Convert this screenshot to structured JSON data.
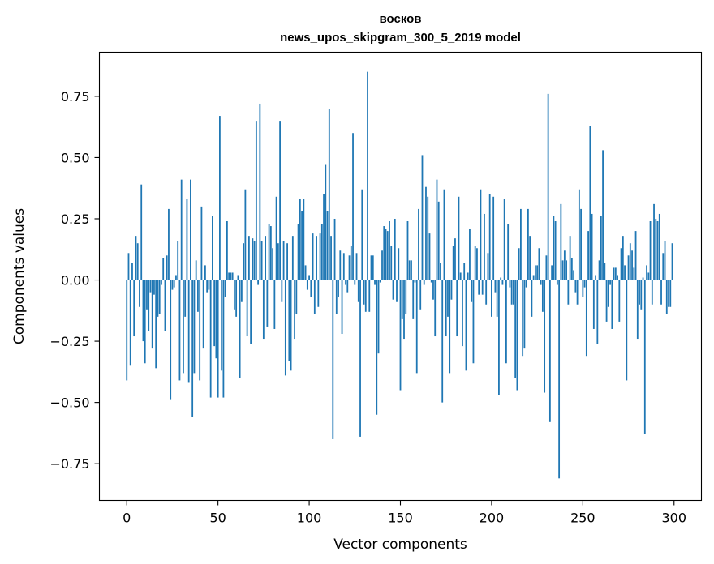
{
  "chart_data": {
    "type": "bar",
    "title_line1": "восков",
    "title_line2": "news_upos_skipgram_300_5_2019 model",
    "xlabel": "Vector components",
    "ylabel": "Components values",
    "xlim": [
      -15,
      315
    ],
    "ylim": [
      -0.9,
      0.93
    ],
    "x_ticks": [
      0,
      50,
      100,
      150,
      200,
      250,
      300
    ],
    "x_tick_labels": [
      "0",
      "50",
      "100",
      "150",
      "200",
      "250",
      "300"
    ],
    "y_ticks": [
      -0.75,
      -0.5,
      -0.25,
      0.0,
      0.25,
      0.5,
      0.75
    ],
    "y_tick_labels": [
      "−0.75",
      "−0.50",
      "−0.25",
      "0.00",
      "0.25",
      "0.50",
      "0.75"
    ],
    "bar_color": "#1f77b4",
    "values": [
      -0.41,
      0.11,
      -0.35,
      0.07,
      -0.23,
      0.18,
      0.15,
      -0.11,
      0.39,
      -0.25,
      -0.34,
      -0.12,
      -0.21,
      -0.05,
      -0.28,
      -0.06,
      -0.36,
      -0.15,
      -0.14,
      -0.02,
      0.09,
      -0.21,
      0.1,
      0.29,
      -0.49,
      -0.04,
      -0.03,
      0.02,
      0.16,
      -0.41,
      0.41,
      -0.38,
      -0.15,
      0.33,
      -0.42,
      0.41,
      -0.56,
      -0.38,
      0.08,
      -0.13,
      -0.41,
      0.3,
      -0.28,
      0.06,
      -0.05,
      -0.04,
      -0.48,
      0.26,
      -0.27,
      -0.32,
      -0.48,
      0.67,
      -0.37,
      -0.48,
      -0.07,
      0.24,
      0.03,
      0.03,
      0.03,
      -0.12,
      -0.15,
      0.02,
      -0.4,
      -0.09,
      0.15,
      0.37,
      -0.23,
      0.18,
      -0.26,
      0.17,
      0.16,
      0.65,
      -0.02,
      0.72,
      0.16,
      -0.24,
      0.18,
      -0.19,
      0.23,
      0.22,
      0.13,
      -0.2,
      0.34,
      0.15,
      0.65,
      -0.09,
      0.16,
      -0.39,
      0.15,
      -0.33,
      -0.37,
      0.18,
      -0.24,
      -0.14,
      0.23,
      0.33,
      0.28,
      0.33,
      0.06,
      -0.04,
      0.02,
      -0.07,
      0.19,
      -0.14,
      0.18,
      -0.11,
      0.19,
      0.23,
      0.35,
      0.47,
      0.28,
      0.7,
      0.18,
      -0.65,
      0.25,
      -0.14,
      -0.07,
      0.12,
      -0.22,
      0.11,
      -0.02,
      -0.05,
      0.1,
      0.14,
      0.6,
      -0.02,
      0.11,
      -0.09,
      -0.64,
      0.37,
      -0.1,
      -0.13,
      0.85,
      -0.13,
      0.1,
      0.1,
      -0.02,
      -0.55,
      -0.3,
      -0.01,
      0.12,
      0.22,
      0.21,
      0.2,
      0.24,
      0.14,
      -0.08,
      0.25,
      -0.09,
      0.13,
      -0.45,
      -0.16,
      -0.24,
      -0.14,
      0.24,
      0.08,
      0.08,
      -0.16,
      -0.01,
      -0.38,
      0.29,
      -0.12,
      0.51,
      -0.02,
      0.38,
      0.34,
      0.19,
      -0.01,
      -0.08,
      -0.23,
      0.41,
      0.32,
      0.07,
      -0.5,
      0.37,
      -0.23,
      -0.15,
      -0.38,
      -0.08,
      0.14,
      0.17,
      -0.23,
      0.34,
      0.03,
      -0.27,
      0.07,
      -0.37,
      0.03,
      0.21,
      -0.09,
      -0.34,
      0.14,
      0.13,
      -0.06,
      0.37,
      -0.06,
      0.27,
      -0.1,
      0.11,
      0.35,
      -0.15,
      0.34,
      -0.05,
      -0.15,
      -0.47,
      0.01,
      -0.02,
      0.33,
      -0.34,
      0.23,
      -0.03,
      -0.1,
      -0.1,
      -0.4,
      -0.45,
      0.13,
      0.29,
      -0.31,
      -0.28,
      -0.03,
      0.29,
      0.18,
      -0.15,
      0.02,
      0.06,
      0.06,
      0.13,
      -0.02,
      -0.13,
      -0.46,
      0.1,
      0.76,
      -0.58,
      0.06,
      0.26,
      0.24,
      -0.02,
      -0.81,
      0.31,
      0.08,
      0.12,
      0.08,
      -0.1,
      0.18,
      0.09,
      0.04,
      -0.05,
      -0.1,
      0.37,
      0.29,
      -0.07,
      -0.03,
      -0.31,
      0.2,
      0.63,
      0.27,
      -0.2,
      0.02,
      -0.26,
      0.08,
      0.26,
      0.53,
      0.07,
      -0.17,
      -0.11,
      -0.02,
      -0.2,
      0.05,
      0.05,
      0.02,
      -0.17,
      0.13,
      0.18,
      0.06,
      -0.41,
      0.1,
      0.15,
      0.12,
      0.05,
      0.2,
      -0.24,
      -0.1,
      -0.12,
      0.01,
      -0.63,
      0.06,
      0.03,
      0.24,
      -0.1,
      0.31,
      0.25,
      0.24,
      0.27,
      -0.1,
      0.11,
      0.16,
      -0.14,
      -0.11,
      -0.11,
      0.15
    ]
  }
}
